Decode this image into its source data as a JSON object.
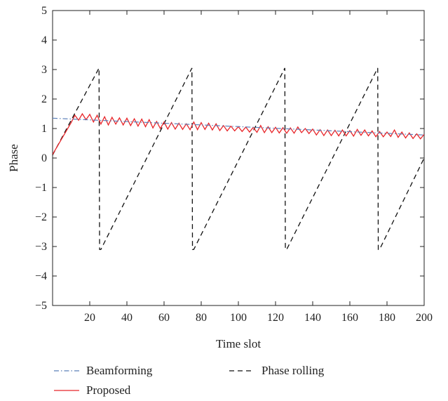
{
  "chart_data": {
    "type": "line",
    "title": "",
    "xlabel": "Time slot",
    "ylabel": "Phase",
    "xlim": [
      0,
      200
    ],
    "ylim": [
      -5,
      5
    ],
    "xticks": [
      20,
      40,
      60,
      80,
      100,
      120,
      140,
      160,
      180,
      200
    ],
    "yticks": [
      -5,
      -4,
      -3,
      -2,
      -1,
      0,
      1,
      2,
      3,
      4,
      5
    ],
    "grid": false,
    "legend_position": "bottom",
    "series": [
      {
        "name": "Beamforming",
        "color": "#5b7fb8",
        "style": "dashdot",
        "x": [
          0,
          200
        ],
        "y": [
          1.35,
          0.78
        ]
      },
      {
        "name": "Proposed",
        "color": "#e8262a",
        "style": "solid",
        "x": [
          0,
          10,
          12,
          14,
          16,
          18,
          20,
          22,
          24,
          26,
          28,
          30,
          32,
          34,
          36,
          38,
          40,
          42,
          44,
          46,
          48,
          50,
          52,
          54,
          56,
          58,
          60,
          62,
          64,
          66,
          68,
          70,
          72,
          74,
          76,
          78,
          80,
          82,
          84,
          86,
          88,
          90,
          92,
          94,
          96,
          98,
          100,
          102,
          104,
          106,
          108,
          110,
          112,
          114,
          116,
          118,
          120,
          122,
          124,
          126,
          128,
          130,
          132,
          134,
          136,
          138,
          140,
          142,
          144,
          146,
          148,
          150,
          152,
          154,
          156,
          158,
          160,
          162,
          164,
          166,
          168,
          170,
          172,
          174,
          176,
          178,
          180,
          182,
          184,
          186,
          188,
          190,
          192,
          194,
          196,
          198,
          200
        ],
        "y": [
          0.12,
          1.2,
          1.45,
          1.28,
          1.5,
          1.3,
          1.48,
          1.22,
          1.45,
          1.15,
          1.4,
          1.12,
          1.38,
          1.15,
          1.36,
          1.12,
          1.35,
          1.1,
          1.33,
          1.08,
          1.32,
          1.06,
          1.3,
          1.02,
          1.24,
          1.0,
          1.22,
          0.98,
          1.2,
          0.98,
          1.18,
          0.97,
          1.16,
          0.96,
          1.22,
          0.96,
          1.2,
          0.97,
          1.18,
          0.95,
          1.16,
          0.93,
          1.1,
          0.92,
          1.08,
          0.92,
          1.06,
          0.9,
          1.05,
          0.88,
          1.04,
          0.87,
          1.1,
          0.86,
          1.06,
          0.86,
          1.04,
          0.85,
          1.03,
          0.84,
          1.02,
          0.84,
          1.05,
          0.86,
          1.0,
          0.83,
          0.98,
          0.78,
          0.96,
          0.76,
          0.95,
          0.76,
          0.94,
          0.75,
          0.95,
          0.75,
          0.93,
          0.74,
          0.97,
          0.77,
          0.95,
          0.75,
          0.92,
          0.72,
          0.9,
          0.72,
          0.88,
          0.73,
          0.95,
          0.7,
          0.88,
          0.68,
          0.85,
          0.66,
          0.82,
          0.65,
          0.8
        ]
      },
      {
        "name": "Phase rolling",
        "color": "#111111",
        "style": "dashed",
        "x": [
          0,
          25,
          25.3,
          26,
          75,
          75.3,
          76,
          125,
          125.3,
          126,
          175,
          175.3,
          176,
          200
        ],
        "y": [
          0.1,
          3.05,
          -3.1,
          -3.1,
          3.05,
          -3.1,
          -3.1,
          3.05,
          -3.1,
          -3.1,
          3.05,
          -3.1,
          -3.1,
          0.0
        ]
      }
    ]
  }
}
